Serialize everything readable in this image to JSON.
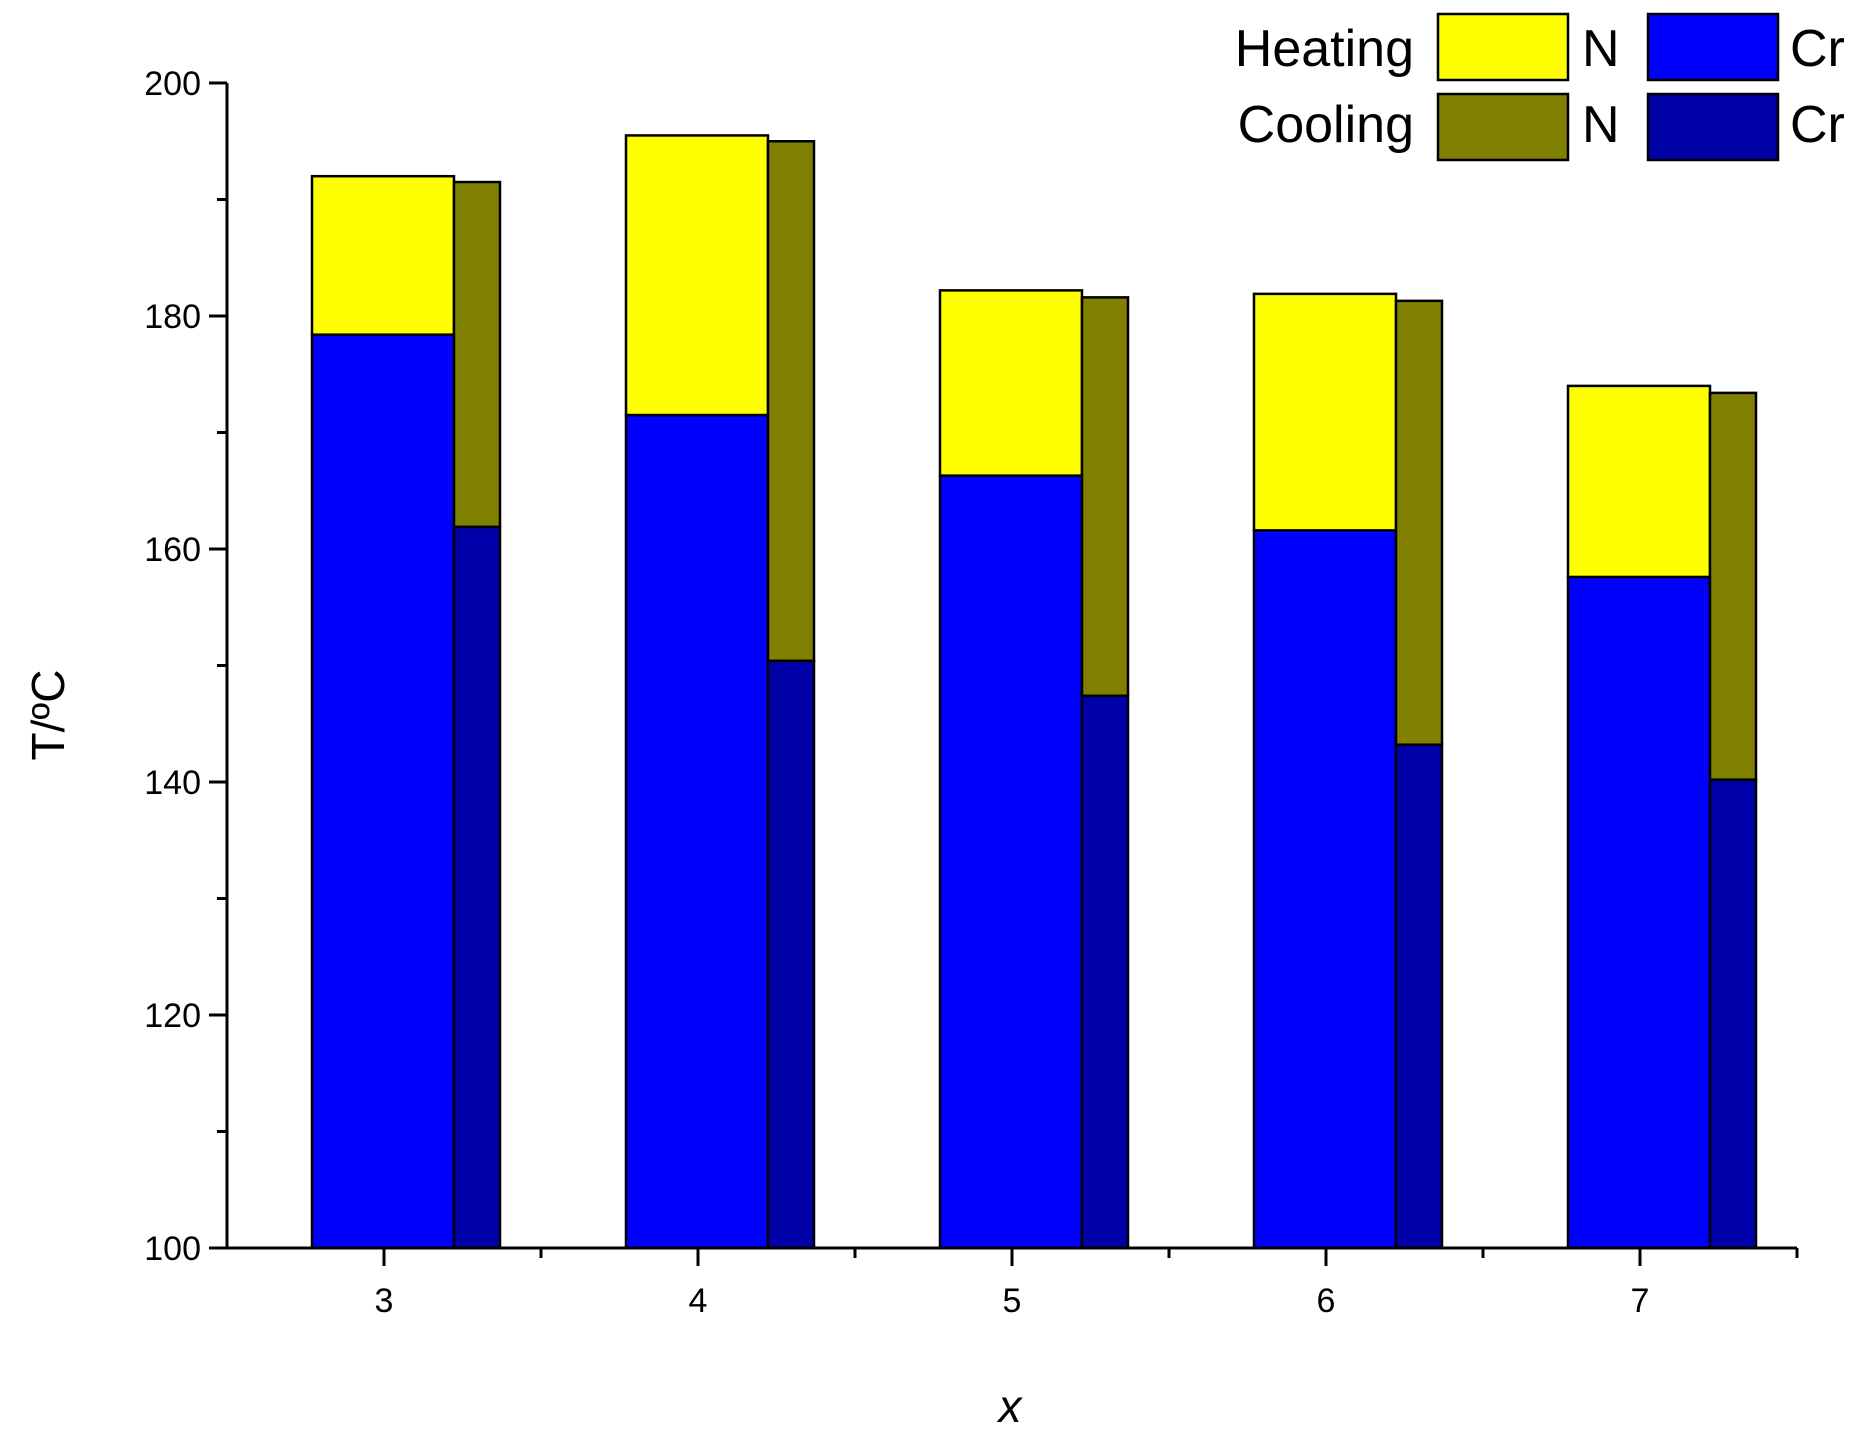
{
  "chart_data": {
    "type": "bar",
    "title": "",
    "xlabel": "x",
    "ylabel": "T/ºC",
    "ylim": [
      100,
      200
    ],
    "y_major_ticks": [
      100,
      120,
      140,
      160,
      180,
      200
    ],
    "y_minor_step": 10,
    "grid": false,
    "categories": [
      "3",
      "4",
      "5",
      "6",
      "7"
    ],
    "heating": {
      "label": "Heating",
      "N": [
        192.0,
        195.5,
        182.2,
        181.9,
        174.0
      ],
      "Cr": [
        178.4,
        171.5,
        166.3,
        161.6,
        157.6
      ]
    },
    "cooling": {
      "label": "Cooling",
      "N": [
        191.5,
        195.0,
        181.6,
        181.3,
        173.4
      ],
      "Cr": [
        161.9,
        150.4,
        147.4,
        143.2,
        140.2
      ]
    },
    "legend": {
      "position": "top-right",
      "rows": [
        {
          "label": "Heating",
          "entries": [
            {
              "phase": "N",
              "color": "#ffff00"
            },
            {
              "phase": "Cr",
              "color": "#0000ff"
            }
          ]
        },
        {
          "label": "Cooling",
          "entries": [
            {
              "phase": "N",
              "color": "#808000"
            },
            {
              "phase": "Cr",
              "color": "#0000a8"
            }
          ]
        }
      ]
    },
    "colors": {
      "heating_N": "#ffff00",
      "heating_Cr": "#0000ff",
      "cooling_N": "#808000",
      "cooling_Cr": "#0000a8"
    }
  }
}
